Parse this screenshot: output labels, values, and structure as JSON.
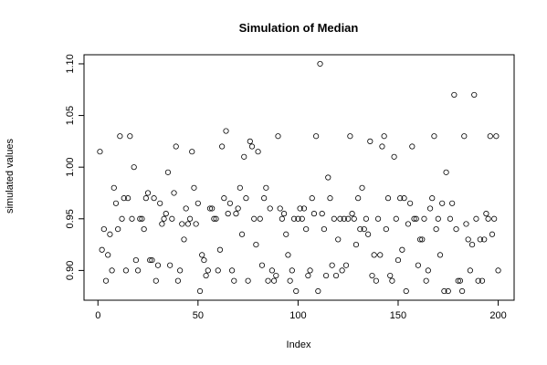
{
  "chart_data": {
    "type": "scatter",
    "title": "Simulation of Median",
    "x_label": "Index",
    "y_label": "simulated values",
    "x": [
      1,
      2,
      3,
      4,
      5,
      6,
      7,
      8,
      9,
      10,
      11,
      12,
      13,
      14,
      15,
      16,
      17,
      18,
      19,
      20,
      21,
      22,
      23,
      24,
      25,
      26,
      27,
      28,
      29,
      30,
      31,
      32,
      33,
      34,
      35,
      36,
      37,
      38,
      39,
      40,
      41,
      42,
      43,
      44,
      45,
      46,
      47,
      48,
      49,
      50,
      51,
      52,
      53,
      54,
      55,
      56,
      57,
      58,
      59,
      60,
      61,
      62,
      63,
      64,
      65,
      66,
      67,
      68,
      69,
      70,
      71,
      72,
      73,
      74,
      75,
      76,
      77,
      78,
      79,
      80,
      81,
      82,
      83,
      84,
      85,
      86,
      87,
      88,
      89,
      90,
      91,
      92,
      93,
      94,
      95,
      96,
      97,
      98,
      99,
      100,
      101,
      102,
      103,
      104,
      105,
      106,
      107,
      108,
      109,
      110,
      111,
      112,
      113,
      114,
      115,
      116,
      117,
      118,
      119,
      120,
      121,
      122,
      123,
      124,
      125,
      126,
      127,
      128,
      129,
      130,
      131,
      132,
      133,
      134,
      135,
      136,
      137,
      138,
      139,
      140,
      141,
      142,
      143,
      144,
      145,
      146,
      147,
      148,
      149,
      150,
      151,
      152,
      153,
      154,
      155,
      156,
      157,
      158,
      159,
      160,
      161,
      162,
      163,
      164,
      165,
      166,
      167,
      168,
      169,
      170,
      171,
      172,
      173,
      174,
      175,
      176,
      177,
      178,
      179,
      180,
      181,
      182,
      183,
      184,
      185,
      186,
      187,
      188,
      189,
      190,
      191,
      192,
      193,
      194,
      195,
      196,
      197,
      198,
      199,
      200
    ],
    "series": [
      {
        "color": "#000000",
        "values": [
          1.015,
          0.92,
          0.94,
          0.89,
          0.915,
          0.935,
          0.9,
          0.98,
          0.965,
          0.94,
          1.03,
          0.95,
          0.97,
          0.9,
          0.97,
          1.03,
          0.95,
          1.0,
          0.91,
          0.9,
          0.95,
          0.95,
          0.94,
          0.97,
          0.975,
          0.91,
          0.91,
          0.97,
          0.89,
          0.905,
          0.965,
          0.945,
          0.95,
          0.955,
          0.995,
          0.905,
          0.95,
          0.975,
          1.02,
          0.89,
          0.9,
          0.945,
          0.93,
          0.96,
          0.945,
          0.95,
          1.015,
          0.98,
          0.945,
          0.965,
          0.88,
          0.915,
          0.91,
          0.895,
          0.9,
          0.96,
          0.96,
          0.95,
          0.95,
          0.9,
          0.92,
          1.02,
          0.97,
          1.035,
          0.955,
          0.965,
          0.9,
          0.89,
          0.955,
          0.96,
          0.98,
          0.935,
          1.01,
          0.97,
          0.89,
          1.025,
          1.02,
          0.95,
          0.925,
          1.015,
          0.95,
          0.905,
          0.97,
          0.98,
          0.89,
          0.96,
          0.9,
          0.89,
          0.895,
          1.03,
          0.96,
          0.95,
          0.955,
          0.935,
          0.915,
          0.89,
          0.9,
          0.95,
          0.88,
          0.95,
          0.96,
          0.95,
          0.96,
          0.94,
          0.895,
          0.9,
          0.97,
          0.955,
          1.03,
          0.88,
          1.1,
          0.955,
          0.94,
          0.895,
          0.99,
          0.97,
          0.905,
          0.95,
          0.895,
          0.93,
          0.95,
          0.9,
          0.95,
          0.905,
          0.95,
          1.03,
          0.955,
          0.95,
          0.925,
          0.97,
          0.94,
          0.98,
          0.94,
          0.95,
          0.935,
          1.025,
          0.895,
          0.915,
          0.89,
          0.95,
          0.915,
          1.02,
          1.03,
          0.94,
          0.97,
          0.895,
          0.89,
          1.01,
          0.95,
          0.91,
          0.97,
          0.92,
          0.97,
          0.88,
          0.945,
          0.965,
          1.02,
          0.95,
          0.95,
          0.905,
          0.93,
          0.93,
          0.95,
          0.89,
          0.9,
          0.96,
          0.97,
          1.03,
          0.94,
          0.95,
          0.915,
          0.965,
          0.88,
          0.995,
          0.88,
          0.95,
          0.965,
          1.07,
          0.94,
          0.89,
          0.89,
          0.88,
          1.03,
          0.945,
          0.93,
          0.9,
          0.925,
          1.07,
          0.95,
          0.89,
          0.93,
          0.89,
          0.93,
          0.955,
          0.95,
          1.03,
          0.935,
          0.95,
          1.03,
          0.9
        ]
      }
    ],
    "xlim": [
      -6.96,
      207.96
    ],
    "ylim": [
      0.8712,
      1.1088
    ],
    "xticks": [
      0,
      50,
      100,
      150,
      200
    ],
    "yticks": [
      {
        "value": 0.9,
        "label": "0.90"
      },
      {
        "value": 0.95,
        "label": "0.95"
      },
      {
        "value": 1.0,
        "label": "1.00"
      },
      {
        "value": 1.05,
        "label": "1.05"
      },
      {
        "value": 1.1,
        "label": "1.10"
      }
    ]
  }
}
